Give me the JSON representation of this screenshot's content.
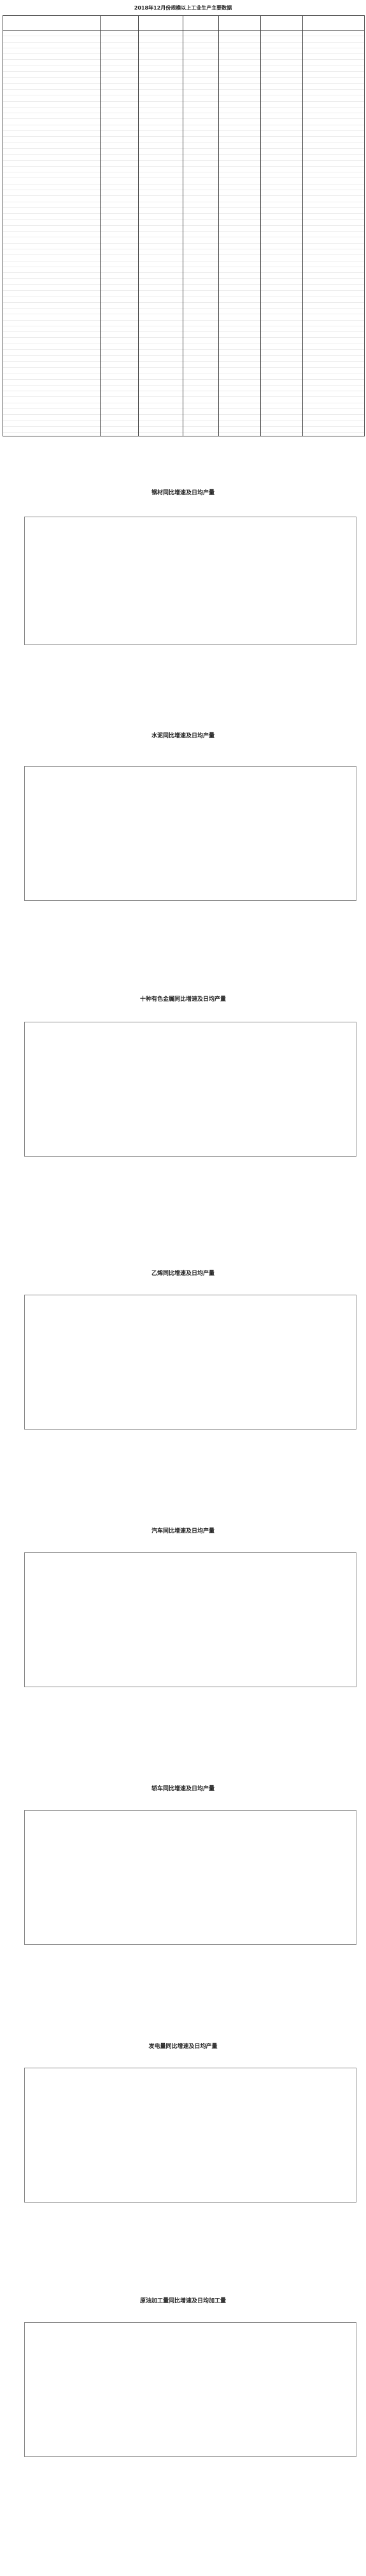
{
  "page_title": "2018年12月份规模以上工业生产主要数据",
  "charts": [
    {
      "title": "钢材同比增速及日均产量"
    },
    {
      "title": "水泥同比增速及日均产量"
    },
    {
      "title": "十种有色金属同比增速及日均产量"
    },
    {
      "title": "乙烯同比增速及日均产量"
    },
    {
      "title": "汽车同比增速及日均产量"
    },
    {
      "title": "轿车同比增速及日均产量"
    },
    {
      "title": "发电量同比增速及日均产量"
    },
    {
      "title": "原油加工量同比增速及日均加工量"
    }
  ]
}
